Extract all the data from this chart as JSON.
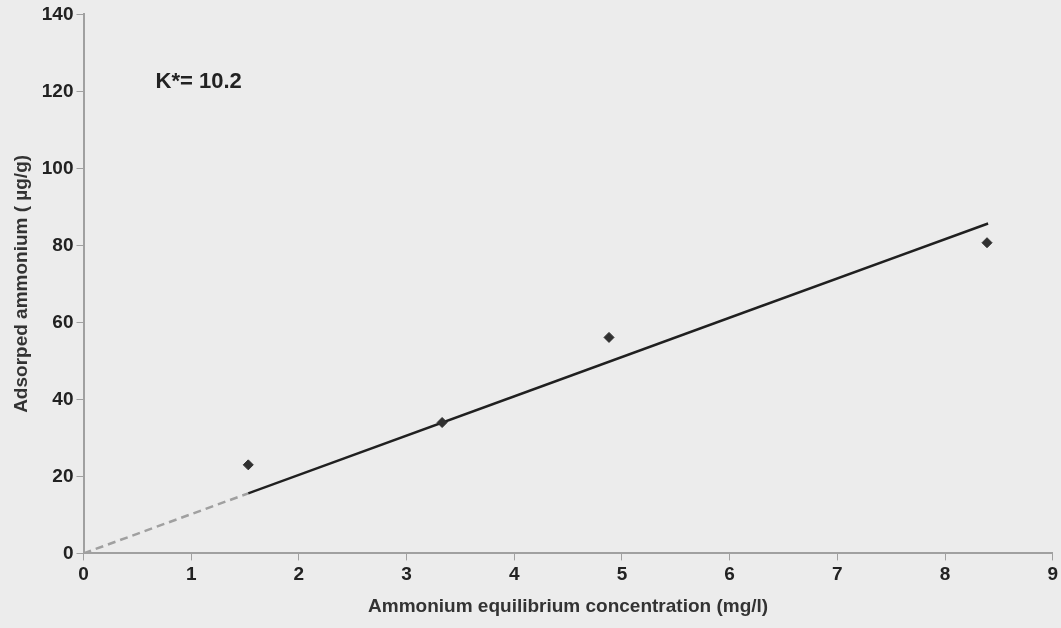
{
  "chart_data": {
    "type": "scatter",
    "xlabel": "Ammonium equilibrium concentration (mg/l)",
    "ylabel": "Adsorped ammonium ( µg/g)",
    "xlim": [
      0,
      9
    ],
    "xticks": [
      0,
      1,
      2,
      3,
      4,
      5,
      6,
      7,
      8,
      9
    ],
    "ylim": [
      0,
      140
    ],
    "yticks": [
      0,
      20,
      40,
      60,
      80,
      100,
      120,
      140
    ],
    "grid": false,
    "legend": false,
    "annotations": [
      "K*= 10.2"
    ],
    "series": [
      {
        "type": "scatter",
        "color": "#303030",
        "marker": "diamond",
        "x": [
          1.53,
          3.33,
          4.88,
          8.39
        ],
        "values": [
          23,
          34,
          56.1,
          80.7
        ]
      },
      {
        "type": "line",
        "color": "#202020",
        "marker": "none",
        "line_style": "solid",
        "x": [
          1.53,
          8.4
        ],
        "values": [
          15.6,
          85.7
        ]
      },
      {
        "type": "line",
        "color": "#a0a0a0",
        "marker": "none",
        "line_style": "dashed",
        "x": [
          0,
          1.53
        ],
        "values": [
          0,
          15.6
        ]
      }
    ]
  }
}
